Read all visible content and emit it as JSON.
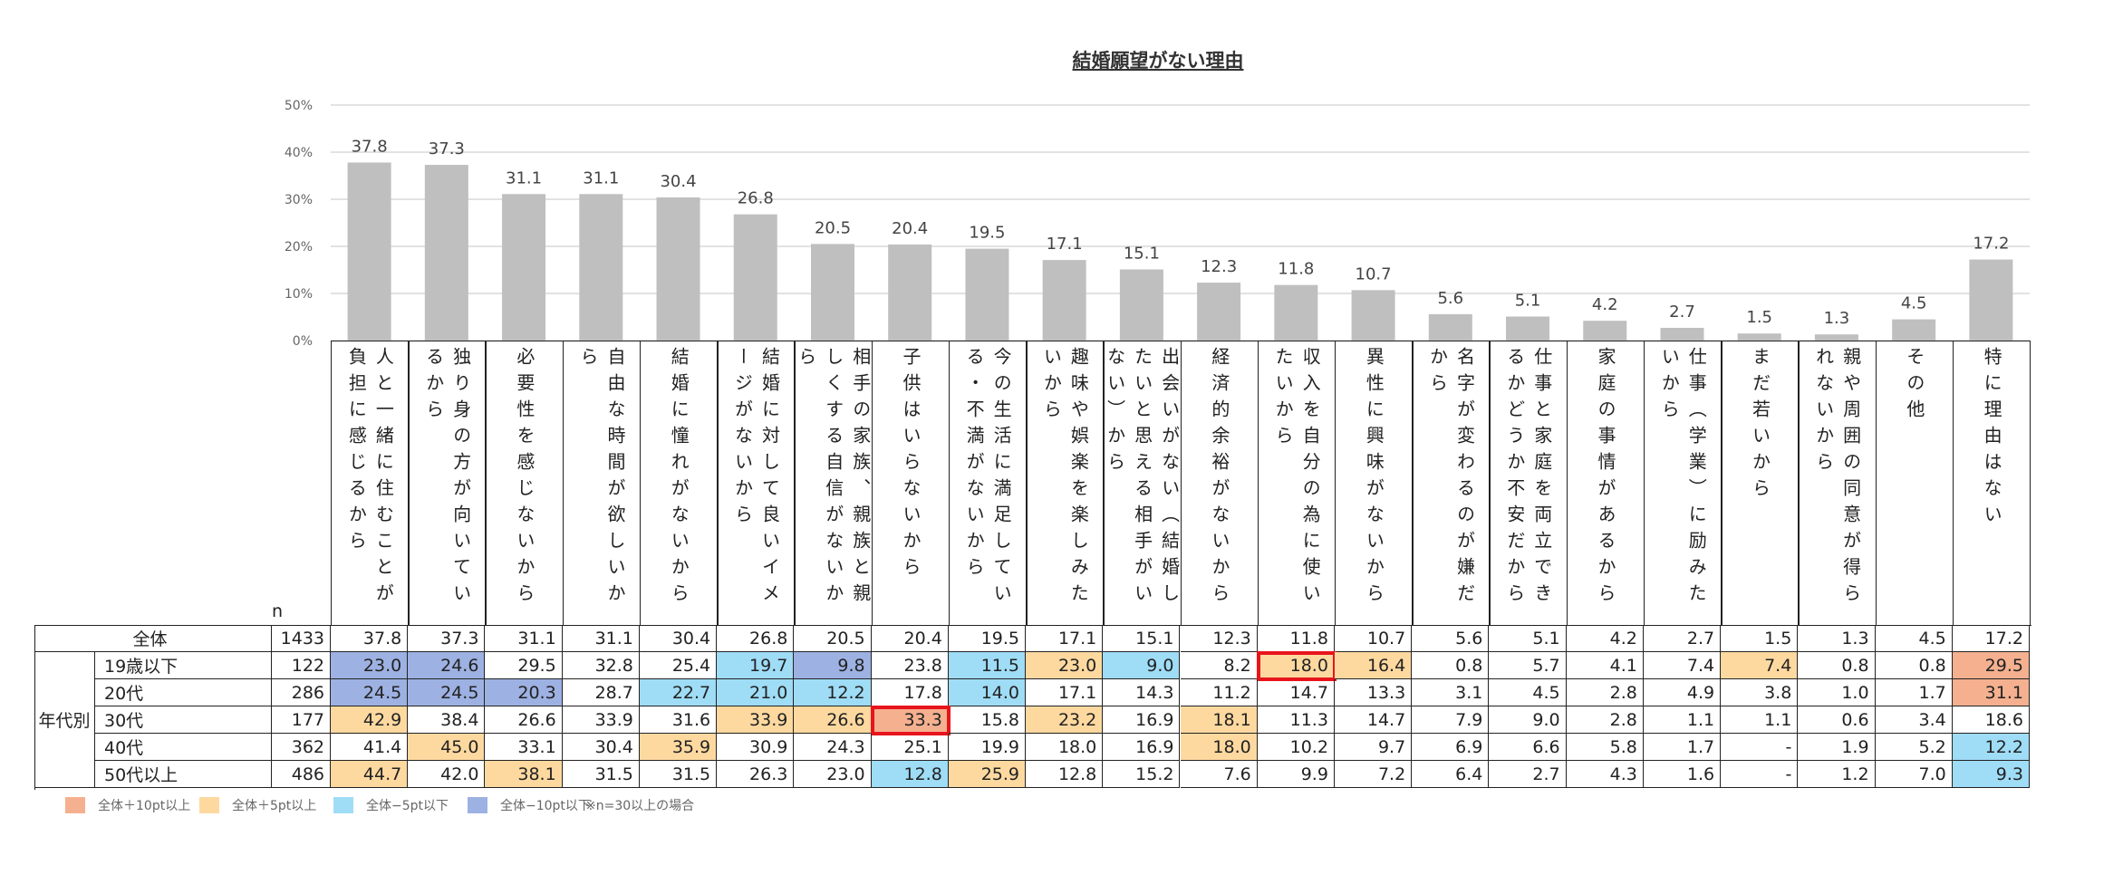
{
  "chart_data": {
    "type": "bar",
    "title": "結婚願望がない理由",
    "color": "#bfbfbf",
    "grid": true,
    "categories": [
      "人と一緒に住むことが負担に感じるから",
      "独り身の方が向いているから",
      "必要性を感じないから",
      "自由な時間が欲しいから",
      "結婚に憧れがないから",
      "結婚に対して良いイメージがないから",
      "相手の家族、親族と親しくする自信がないから",
      "子供はいらないから",
      "今の生活に満足している・不満がないから",
      "趣味や娯楽を楽しみたいから",
      "出会いがない（結婚したいと思える相手がいない）から",
      "経済的余裕がないから",
      "収入を自分の為に使いたいから",
      "異性に興味がないから",
      "名字が変わるのが嫌だから",
      "仕事と家庭を両立できるかどうか不安だから",
      "家庭の事情があるから",
      "仕事（学業）に励みたいから",
      "まだ若いから",
      "親や周囲の同意が得られないから",
      "その他",
      "特に理由はない"
    ],
    "values": [
      37.8,
      37.3,
      31.1,
      31.1,
      30.4,
      26.8,
      20.5,
      20.4,
      19.5,
      17.1,
      15.1,
      12.3,
      11.8,
      10.7,
      5.6,
      5.1,
      4.2,
      2.7,
      1.5,
      1.3,
      4.5,
      17.2
    ],
    "ylim": [
      0,
      50
    ],
    "yticks": [
      {
        "value": 0,
        "label": "0%"
      },
      {
        "value": 10,
        "label": "10%"
      },
      {
        "value": 20,
        "label": "20%"
      },
      {
        "value": 30,
        "label": "30%"
      },
      {
        "value": 40,
        "label": "40%"
      },
      {
        "value": 50,
        "label": "50%"
      }
    ]
  },
  "table": {
    "n_header": "n",
    "group_label": "年代別",
    "outline_color": "#e8141c",
    "rows": [
      {
        "label": "全体",
        "n": "1433",
        "values": [
          "37.8",
          "37.3",
          "31.1",
          "31.1",
          "30.4",
          "26.8",
          "20.5",
          "20.4",
          "19.5",
          "17.1",
          "15.1",
          "12.3",
          "11.8",
          "10.7",
          "5.6",
          "5.1",
          "4.2",
          "2.7",
          "1.5",
          "1.3",
          "4.5",
          "17.2"
        ]
      },
      {
        "label": "19歳以下",
        "n": "122",
        "values": [
          "23.0",
          "24.6",
          "29.5",
          "32.8",
          "25.4",
          "19.7",
          "9.8",
          "23.8",
          "11.5",
          "23.0",
          "9.0",
          "8.2",
          "18.0",
          "16.4",
          "0.8",
          "5.7",
          "4.1",
          "7.4",
          "7.4",
          "0.8",
          "0.8",
          "29.5"
        ],
        "colors": [
          "#9db1e2",
          "#9db1e2",
          null,
          null,
          null,
          "#9fdcf6",
          "#9db1e2",
          null,
          "#9fdcf6",
          "#fdd9a0",
          "#9fdcf6",
          null,
          "#fdd9a0",
          "#fdd9a0",
          null,
          null,
          null,
          null,
          "#fdd9a0",
          null,
          null,
          "#f4b08f"
        ],
        "outlined": [
          12
        ]
      },
      {
        "label": "20代",
        "n": "286",
        "values": [
          "24.5",
          "24.5",
          "20.3",
          "28.7",
          "22.7",
          "21.0",
          "12.2",
          "17.8",
          "14.0",
          "17.1",
          "14.3",
          "11.2",
          "14.7",
          "13.3",
          "3.1",
          "4.5",
          "2.8",
          "4.9",
          "3.8",
          "1.0",
          "1.7",
          "31.1"
        ],
        "colors": [
          "#9db1e2",
          "#9db1e2",
          "#9db1e2",
          null,
          "#9fdcf6",
          "#9fdcf6",
          "#9fdcf6",
          null,
          "#9fdcf6",
          null,
          null,
          null,
          null,
          null,
          null,
          null,
          null,
          null,
          null,
          null,
          null,
          "#f4b08f"
        ]
      },
      {
        "label": "30代",
        "n": "177",
        "values": [
          "42.9",
          "38.4",
          "26.6",
          "33.9",
          "31.6",
          "33.9",
          "26.6",
          "33.3",
          "15.8",
          "23.2",
          "16.9",
          "18.1",
          "11.3",
          "14.7",
          "7.9",
          "9.0",
          "2.8",
          "1.1",
          "1.1",
          "0.6",
          "3.4",
          "18.6"
        ],
        "colors": [
          "#fdd9a0",
          null,
          null,
          null,
          null,
          "#fdd9a0",
          "#fdd9a0",
          "#f4b08f",
          null,
          "#fdd9a0",
          null,
          "#fdd9a0",
          null,
          null,
          null,
          null,
          null,
          null,
          null,
          null,
          null,
          null
        ],
        "outlined": [
          7
        ]
      },
      {
        "label": "40代",
        "n": "362",
        "values": [
          "41.4",
          "45.0",
          "33.1",
          "30.4",
          "35.9",
          "30.9",
          "24.3",
          "25.1",
          "19.9",
          "18.0",
          "16.9",
          "18.0",
          "10.2",
          "9.7",
          "6.9",
          "6.6",
          "5.8",
          "1.7",
          "-",
          "1.9",
          "5.2",
          "12.2"
        ],
        "colors": [
          null,
          "#fdd9a0",
          null,
          null,
          "#fdd9a0",
          null,
          null,
          null,
          null,
          null,
          null,
          "#fdd9a0",
          null,
          null,
          null,
          null,
          null,
          null,
          null,
          null,
          null,
          "#9fdcf6"
        ]
      },
      {
        "label": "50代以上",
        "n": "486",
        "values": [
          "44.7",
          "42.0",
          "38.1",
          "31.5",
          "31.5",
          "26.3",
          "23.0",
          "12.8",
          "25.9",
          "12.8",
          "15.2",
          "7.6",
          "9.9",
          "7.2",
          "6.4",
          "2.7",
          "4.3",
          "1.6",
          "-",
          "1.2",
          "7.0",
          "9.3"
        ],
        "colors": [
          "#fdd9a0",
          null,
          "#fdd9a0",
          null,
          null,
          null,
          null,
          "#9fdcf6",
          "#fdd9a0",
          null,
          null,
          null,
          null,
          null,
          null,
          null,
          null,
          null,
          null,
          null,
          null,
          "#9fdcf6"
        ]
      }
    ]
  },
  "legend": {
    "items": [
      {
        "label": "全体＋10pt以上",
        "color": "#f4b08f"
      },
      {
        "label": "全体＋5pt以上",
        "color": "#fdd9a0"
      },
      {
        "label": "全体−5pt以下",
        "color": "#9fdcf6"
      },
      {
        "label": "全体−10pt以下",
        "color": "#9db1e2"
      }
    ],
    "note": "※n=30以上の場合"
  }
}
